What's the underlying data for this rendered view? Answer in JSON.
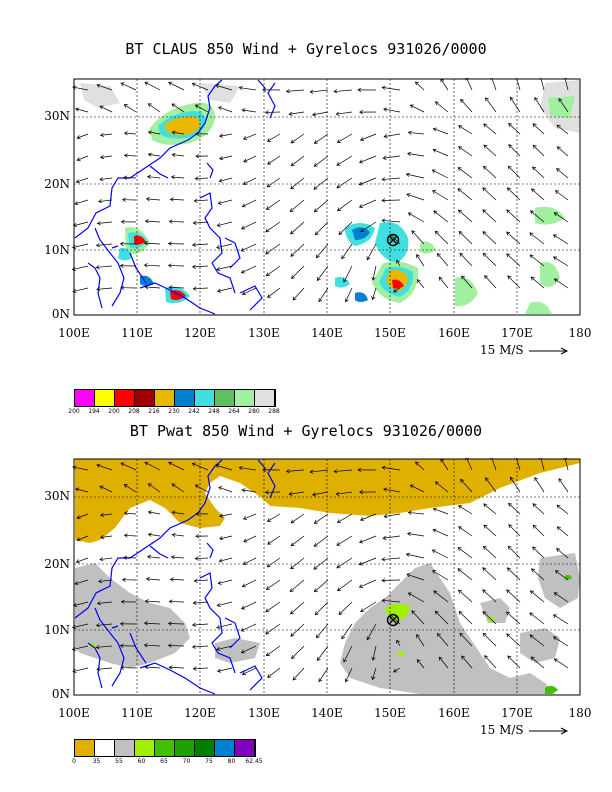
{
  "panels": [
    {
      "title": "BT CLAUS 850 Wind + Gyrelocs 931026/0000",
      "lat_labels": [
        "30N",
        "20N",
        "10N",
        "0N"
      ],
      "lon_labels": [
        "100E",
        "110E",
        "120E",
        "130E",
        "140E",
        "150E",
        "160E",
        "170E",
        "180"
      ],
      "vector_scale_label": "15 M/S",
      "legend": {
        "colors": [
          "#ff00ff",
          "#ffff00",
          "#ff0000",
          "#a00000",
          "#e8b800",
          "#0080d0",
          "#40e0e0",
          "#60c060",
          "#a0f0a0",
          "#e0e0e0"
        ],
        "labels": [
          "200",
          "194",
          "200",
          "208",
          "216",
          "230",
          "242",
          "248",
          "264",
          "280",
          "288"
        ]
      },
      "gyreloc": {
        "lon": 150,
        "lat": 11.8
      }
    },
    {
      "title": "BT Pwat 850 Wind + Gyrelocs 931026/0000",
      "lat_labels": [
        "30N",
        "20N",
        "10N",
        "0N"
      ],
      "lon_labels": [
        "100E",
        "110E",
        "120E",
        "130E",
        "140E",
        "150E",
        "160E",
        "170E",
        "180"
      ],
      "vector_scale_label": "15 M/S",
      "legend": {
        "colors": [
          "#e0b000",
          "#ffffff",
          "#c0c0c0",
          "#a0f000",
          "#40c000",
          "#20a000",
          "#008000",
          "#0080d0",
          "#8000c0"
        ],
        "labels": [
          "0",
          "35",
          "55",
          "60",
          "65",
          "70",
          "75",
          "80",
          "62.45"
        ]
      },
      "gyreloc": {
        "lon": 150,
        "lat": 11.8
      }
    }
  ],
  "colors": {
    "coast": "#0000ff",
    "grid": "#000000",
    "arrow": "#000000"
  }
}
